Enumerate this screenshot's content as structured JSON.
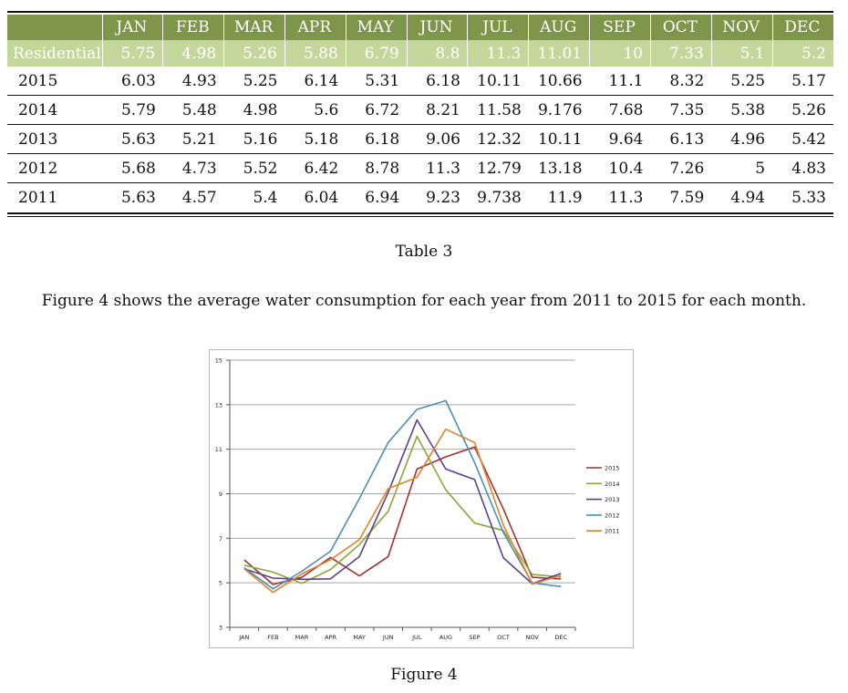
{
  "table": {
    "headers": [
      "",
      "JAN",
      "FEB",
      "MAR",
      "APR",
      "MAY",
      "JUN",
      "JUL",
      "AUG",
      "SEP",
      "OCT",
      "NOV",
      "DEC"
    ],
    "residential": {
      "label": "Residential",
      "values": [
        "5.75",
        "4.98",
        "5.26",
        "5.88",
        "6.79",
        "8.8",
        "11.3",
        "11.01",
        "10",
        "7.33",
        "5.1",
        "5.2"
      ]
    },
    "rows": [
      {
        "year": "2015",
        "values": [
          "6.03",
          "4.93",
          "5.25",
          "6.14",
          "5.31",
          "6.18",
          "10.11",
          "10.66",
          "11.1",
          "8.32",
          "5.25",
          "5.17"
        ]
      },
      {
        "year": "2014",
        "values": [
          "5.79",
          "5.48",
          "4.98",
          "5.6",
          "6.72",
          "8.21",
          "11.58",
          "9.176",
          "7.68",
          "7.35",
          "5.38",
          "5.26"
        ]
      },
      {
        "year": "2013",
        "values": [
          "5.63",
          "5.21",
          "5.16",
          "5.18",
          "6.18",
          "9.06",
          "12.32",
          "10.11",
          "9.64",
          "6.13",
          "4.96",
          "5.42"
        ]
      },
      {
        "year": "2012",
        "values": [
          "5.68",
          "4.73",
          "5.52",
          "6.42",
          "8.78",
          "11.3",
          "12.79",
          "13.18",
          "10.4",
          "7.26",
          "5",
          "4.83"
        ]
      },
      {
        "year": "2011",
        "values": [
          "5.63",
          "4.57",
          "5.4",
          "6.04",
          "6.94",
          "9.23",
          "9.738",
          "11.9",
          "11.3",
          "7.59",
          "4.94",
          "5.33"
        ]
      }
    ],
    "caption": "Table 3",
    "colors": {
      "header_bg": "#7d9649",
      "residential_bg": "#c3d79b"
    }
  },
  "paragraph": "Figure 4 shows the average water consumption for each year from 2011 to 2015 for each month.",
  "figure_caption": "Figure 4",
  "chart_data": {
    "type": "line",
    "categories": [
      "JAN",
      "FEB",
      "MAR",
      "APR",
      "MAY",
      "JUN",
      "JUL",
      "AUG",
      "SEP",
      "OCT",
      "NOV",
      "DEC"
    ],
    "ylim": [
      3,
      15
    ],
    "yticks": [
      "3",
      "5",
      "7",
      "9",
      "11",
      "13",
      "15"
    ],
    "grid": true,
    "legend_position": "right",
    "series": [
      {
        "name": "2015",
        "color": "#a3312e",
        "values": [
          6.03,
          4.93,
          5.25,
          6.14,
          5.31,
          6.18,
          10.11,
          10.66,
          11.1,
          8.32,
          5.25,
          5.17
        ]
      },
      {
        "name": "2014",
        "color": "#8aa83a",
        "values": [
          5.79,
          5.48,
          4.98,
          5.6,
          6.72,
          8.21,
          11.58,
          9.176,
          7.68,
          7.35,
          5.38,
          5.26
        ]
      },
      {
        "name": "2013",
        "color": "#5e3f8c",
        "values": [
          5.63,
          5.21,
          5.16,
          5.18,
          6.18,
          9.06,
          12.32,
          10.11,
          9.64,
          6.13,
          4.96,
          5.42
        ]
      },
      {
        "name": "2012",
        "color": "#4a90b8",
        "values": [
          5.68,
          4.73,
          5.52,
          6.42,
          8.78,
          11.3,
          12.79,
          13.18,
          10.4,
          7.26,
          5,
          4.83
        ]
      },
      {
        "name": "2011",
        "color": "#e0822e",
        "values": [
          5.63,
          4.57,
          5.4,
          6.04,
          6.94,
          9.23,
          9.738,
          11.9,
          11.3,
          7.59,
          4.94,
          5.33
        ]
      }
    ]
  }
}
